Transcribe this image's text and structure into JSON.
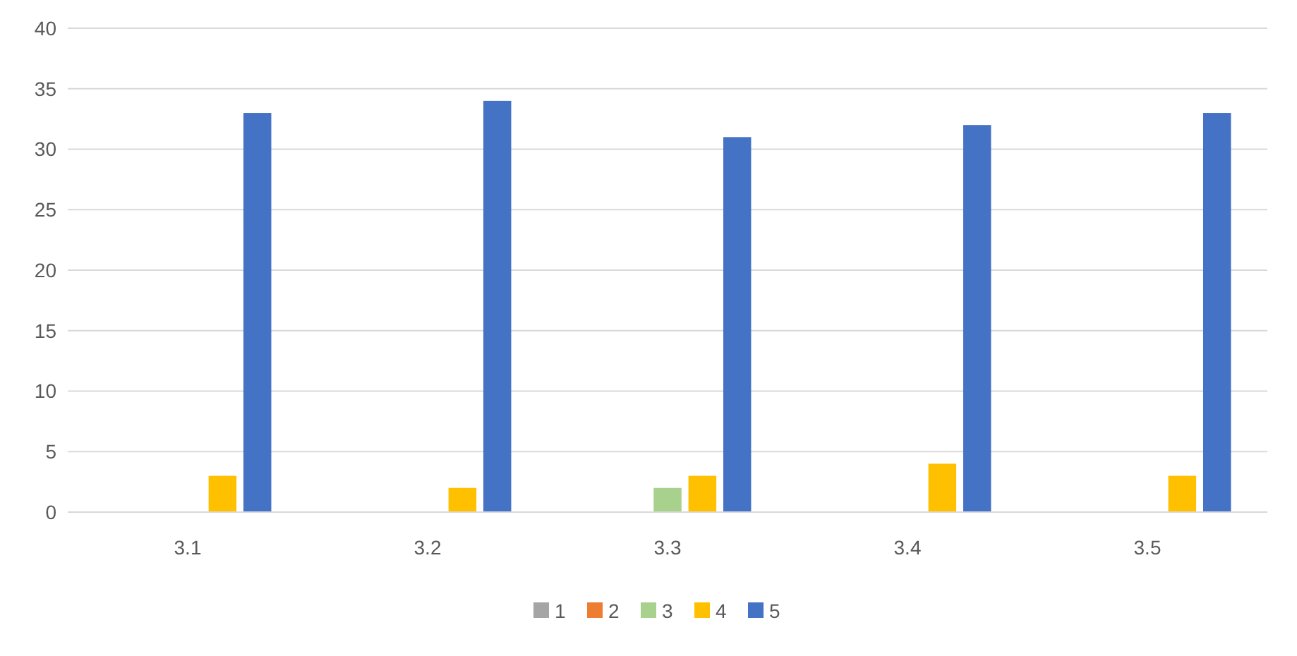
{
  "chart_data": {
    "type": "bar",
    "categories": [
      "3.1",
      "3.2",
      "3.3",
      "3.4",
      "3.5"
    ],
    "series": [
      {
        "name": "1",
        "color": "#a5a5a5",
        "values": [
          0,
          0,
          0,
          0,
          0
        ]
      },
      {
        "name": "2",
        "color": "#ed7d31",
        "values": [
          0,
          0,
          0,
          0,
          0
        ]
      },
      {
        "name": "3",
        "color": "#a9d18e",
        "values": [
          0,
          0,
          2,
          0,
          0
        ]
      },
      {
        "name": "4",
        "color": "#ffc000",
        "values": [
          3,
          2,
          3,
          4,
          3
        ]
      },
      {
        "name": "5",
        "color": "#4472c4",
        "values": [
          33,
          34,
          31,
          32,
          33
        ]
      }
    ],
    "ylim": [
      0,
      40
    ],
    "yticks": [
      0,
      5,
      10,
      15,
      20,
      25,
      30,
      35,
      40
    ],
    "grid": "y",
    "legend": "bottom"
  }
}
